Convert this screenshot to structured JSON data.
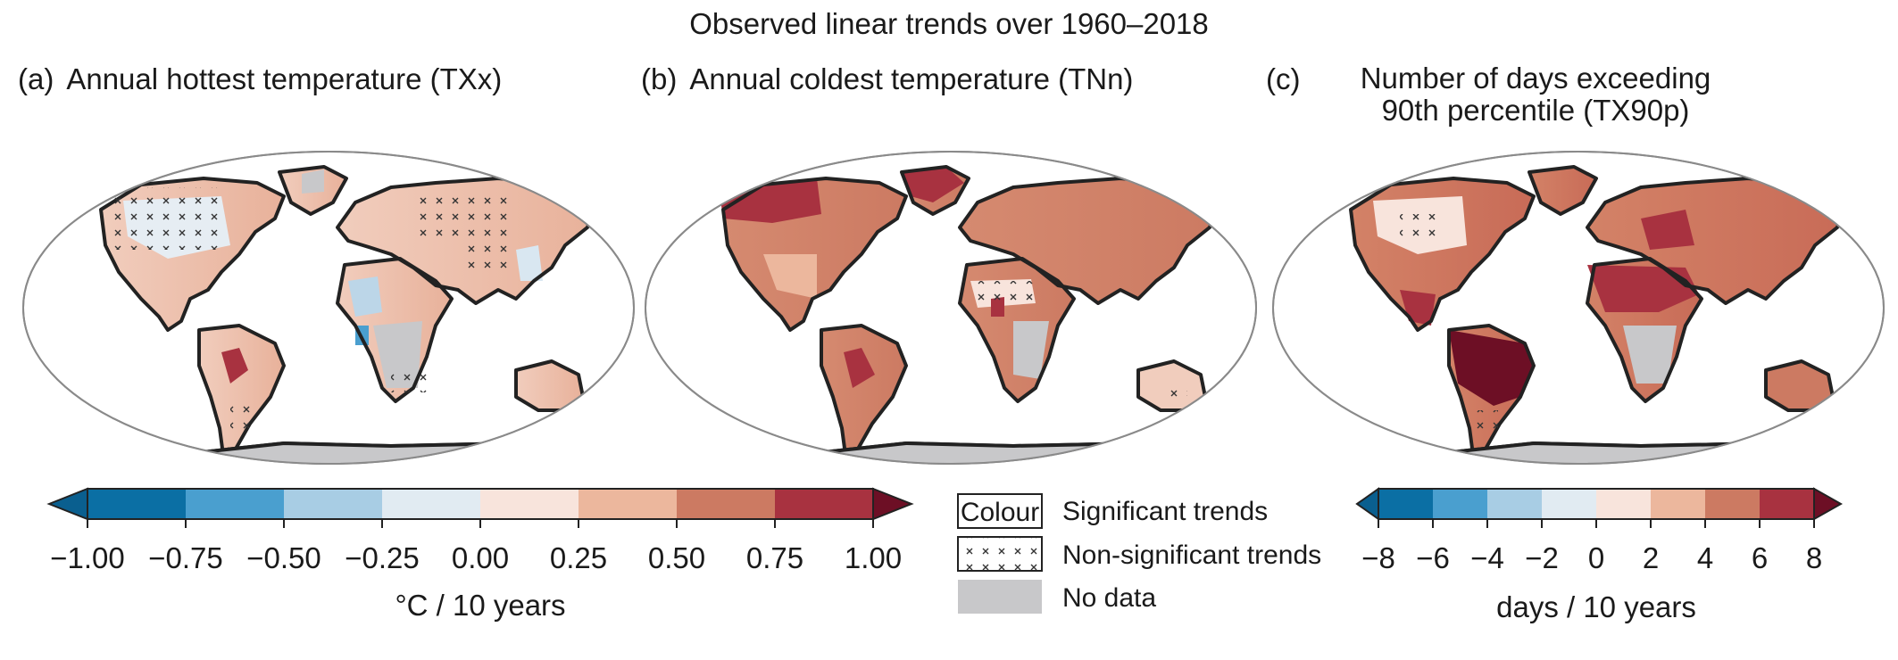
{
  "title": "Observed linear trends over 1960–2018",
  "panels": [
    {
      "letter": "(a)",
      "label": "Annual hottest temperature (TXx)"
    },
    {
      "letter": "(b)",
      "label": "Annual coldest temperature (TNn)"
    },
    {
      "letter": "(c)",
      "label_line1": "Number of days exceeding",
      "label_line2": "90th percentile (TX90p)"
    }
  ],
  "colorbar_left": {
    "ticks": [
      "−1.00",
      "−0.75",
      "−0.50",
      "−0.25",
      "0.00",
      "0.25",
      "0.50",
      "0.75",
      "1.00"
    ],
    "unit": "°C / 10 years",
    "colors": [
      "#0b6fa4",
      "#4a9fcf",
      "#a8cde4",
      "#e1ebf2",
      "#f8e4dc",
      "#ecb79d",
      "#cc7a62",
      "#a83240"
    ],
    "under_color": "#0a5f8f",
    "over_color": "#6d0f25"
  },
  "colorbar_right": {
    "ticks": [
      "−8",
      "−6",
      "−4",
      "−2",
      "0",
      "2",
      "4",
      "6",
      "8"
    ],
    "unit": "days / 10 years"
  },
  "legend": {
    "colour_box": "Colour",
    "significant": "Significant trends",
    "non_significant": "Non-significant trends",
    "no_data": "No data",
    "nodata_color": "#c8c8ca"
  }
}
